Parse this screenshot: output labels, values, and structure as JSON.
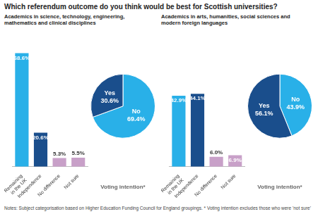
{
  "title": "Which referendum outcome do you think would be best for Scottish universities?",
  "notes": "Notes: Subject categorisation based on Higher Education Funding Council for England groupings.  * Voting intention excludes those who were 'not sure'",
  "chart_data": [
    {
      "type": "bar",
      "subtitle": "Academics in science, technology, engineering,\nmathematics and clinical disciplines",
      "categories": [
        "Remaining\nin the UK",
        "Independence",
        "No difference",
        "Not sure"
      ],
      "values": [
        68.6,
        20.6,
        5.3,
        5.5
      ],
      "colors": [
        "#29b0e8",
        "#1a4e8c",
        "#c8a0c8",
        "#c8a0c8"
      ],
      "value_labels": [
        "68.6%",
        "20.6%",
        "5.3%",
        "5.5%"
      ],
      "data_labels": true,
      "ylim": [
        0,
        82
      ],
      "tick_labels": "x",
      "grid": false
    },
    {
      "type": "pie",
      "title": "Voting intention*",
      "categories": [
        "No",
        "Yes"
      ],
      "values": [
        69.4,
        30.6
      ],
      "colors": [
        "#29b0e8",
        "#1a4e8c"
      ],
      "value_labels": [
        "69.4%",
        "30.6%"
      ],
      "data_labels": true
    },
    {
      "type": "bar",
      "subtitle": "Academics in arts, humanities, social sciences and\nmodern foreign languages",
      "categories": [
        "Remaining\nin the UK",
        "Independence",
        "No difference",
        "Not sure"
      ],
      "values": [
        42.9,
        44.1,
        6.0,
        6.9
      ],
      "colors": [
        "#29b0e8",
        "#1a4e8c",
        "#c8a0c8",
        "#c8a0c8"
      ],
      "value_labels": [
        "42.9%",
        "44.1%",
        "6.0%",
        "6.9%"
      ],
      "data_labels": true,
      "ylim": [
        0,
        82
      ],
      "tick_labels": "x",
      "grid": false
    },
    {
      "type": "pie",
      "title": "Voting intention*",
      "categories": [
        "No",
        "Yes"
      ],
      "values": [
        43.9,
        56.1
      ],
      "colors": [
        "#29b0e8",
        "#1a4e8c"
      ],
      "value_labels": [
        "43.9%",
        "56.1%"
      ],
      "data_labels": true
    }
  ]
}
